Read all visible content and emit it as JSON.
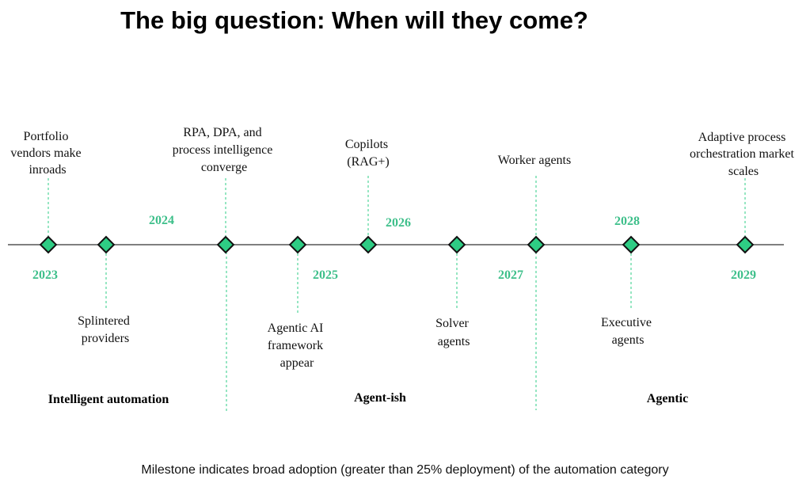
{
  "title": "The big question: When will they come?",
  "footnote": "Milestone indicates broad adoption (greater than 25% deployment) of the automation category",
  "colors": {
    "accent": "#2ecc84",
    "year": "#3dbf8a",
    "line": "#555555"
  },
  "years": [
    "2023",
    "2024",
    "2025",
    "2026",
    "2027",
    "2028",
    "2029"
  ],
  "milestones": [
    {
      "lines": [
        "Portfolio",
        "vendors make",
        "inroads"
      ]
    },
    {
      "lines": [
        "Splintered",
        "providers"
      ]
    },
    {
      "lines": [
        "RPA, DPA, and",
        "process intelligence",
        "converge"
      ]
    },
    {
      "lines": [
        "Agentic AI",
        "framework",
        "appear"
      ]
    },
    {
      "lines": [
        "Copilots",
        "(RAG+)"
      ]
    },
    {
      "lines": [
        "Solver",
        "agents"
      ]
    },
    {
      "lines": [
        "Worker agents"
      ]
    },
    {
      "lines": [
        "Executive",
        "agents"
      ]
    },
    {
      "lines": [
        "Adaptive process",
        "orchestration market",
        "scales"
      ]
    }
  ],
  "phases": [
    "Intelligent automation",
    "Agent-ish",
    "Agentic"
  ]
}
